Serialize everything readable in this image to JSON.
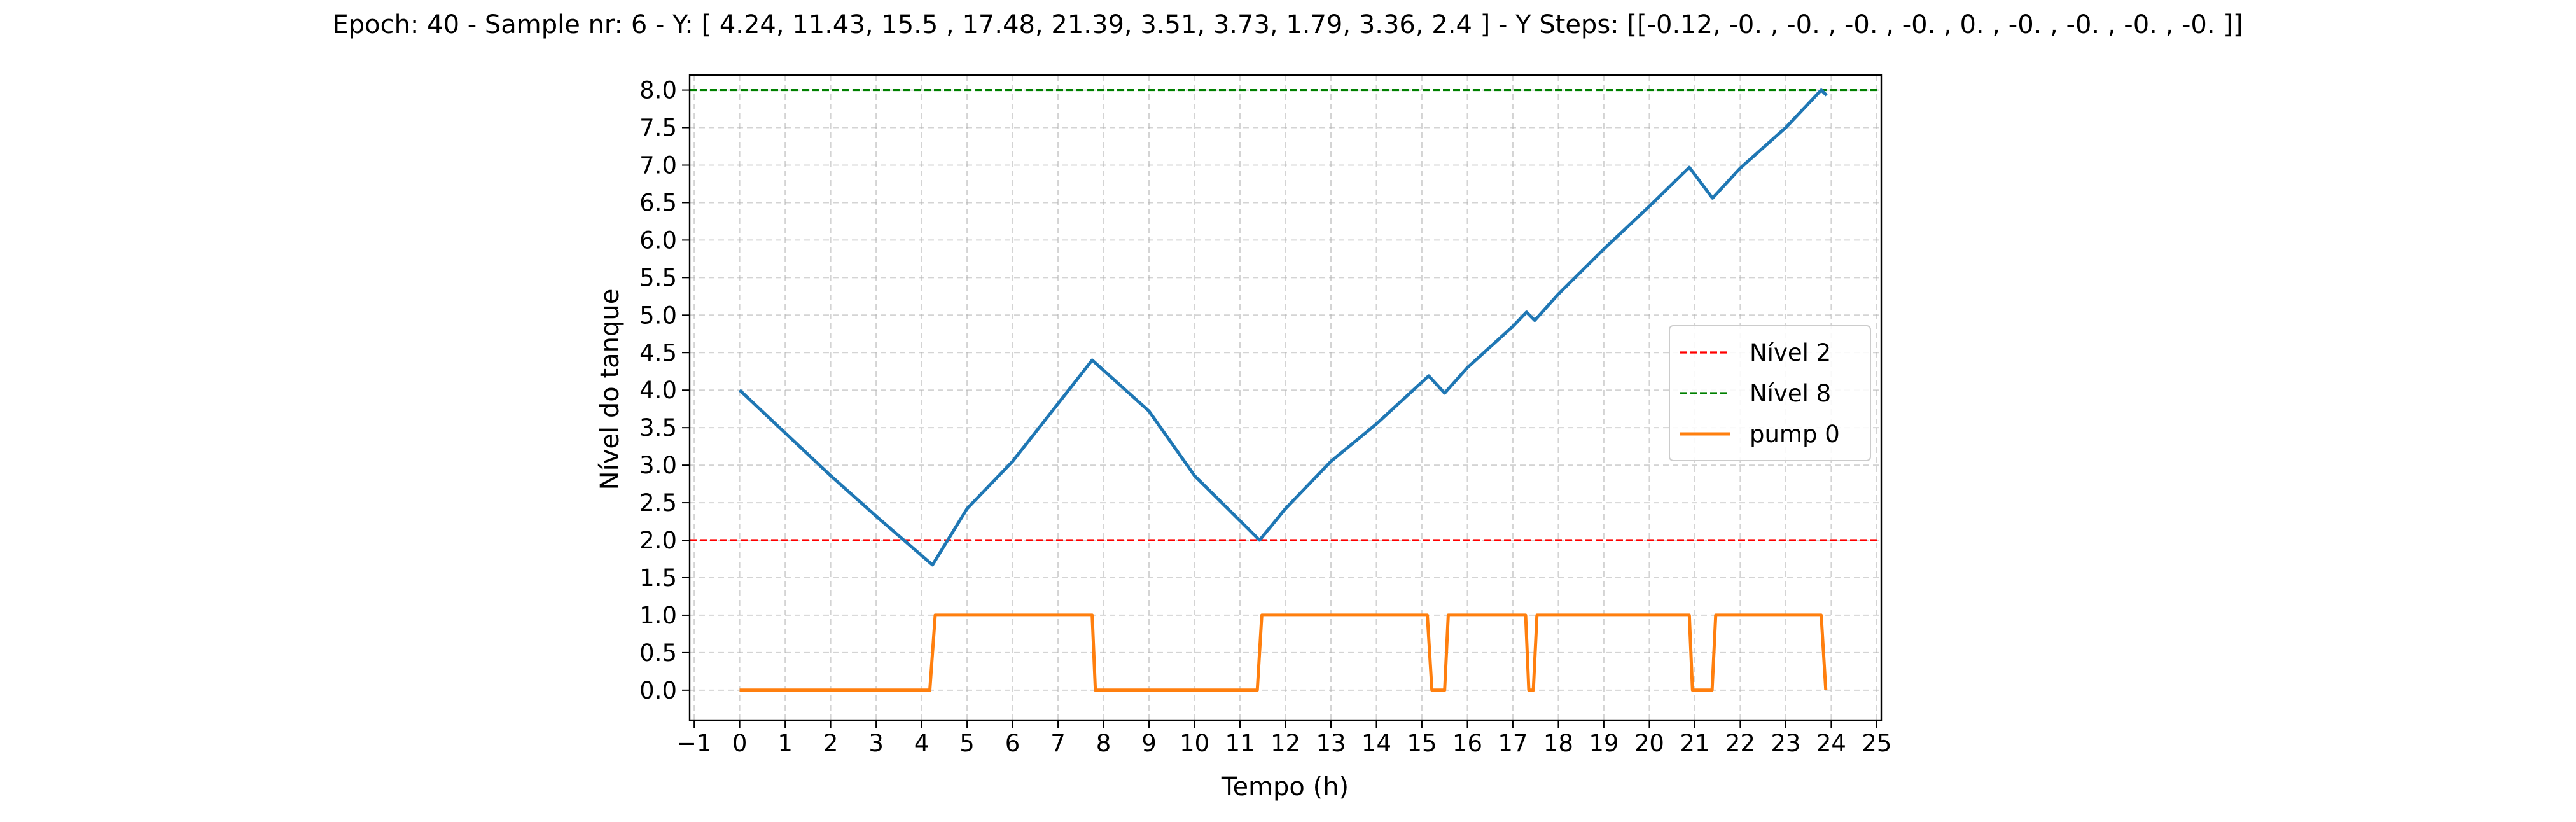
{
  "chart_data": {
    "type": "line",
    "title": "Epoch: 40 - Sample nr: 6 - Y: [ 4.24, 11.43, 15.5 , 17.48, 21.39,  3.51,  3.73,  1.79,  3.36,  2.4 ] - Y Steps: [[-0.12, -0.  , -0.  , -0.  , -0.  ,  0.  , -0.  , -0.  , -0.  , -0.  ]]",
    "xlabel": "Tempo (h)",
    "ylabel": "Nível do tanque",
    "xlim": [
      -1.1,
      25.1
    ],
    "ylim": [
      -0.4,
      8.2
    ],
    "x_ticks": [
      -1,
      0,
      1,
      2,
      3,
      4,
      5,
      6,
      7,
      8,
      9,
      10,
      11,
      12,
      13,
      14,
      15,
      16,
      17,
      18,
      19,
      20,
      21,
      22,
      23,
      24,
      25
    ],
    "y_ticks": [
      0.0,
      0.5,
      1.0,
      1.5,
      2.0,
      2.5,
      3.0,
      3.5,
      4.0,
      4.5,
      5.0,
      5.5,
      6.0,
      6.5,
      7.0,
      7.5,
      8.0
    ],
    "grid": true,
    "legend_position": "center-right",
    "hlines": [
      {
        "name": "Nível 2",
        "y": 2.0,
        "color": "#ff0000",
        "style": "dashed"
      },
      {
        "name": "Nível 8",
        "y": 8.0,
        "color": "#008000",
        "style": "dashed"
      }
    ],
    "series": [
      {
        "color": "#1f77b4",
        "points": [
          [
            0,
            4.0
          ],
          [
            1.0,
            3.43
          ],
          [
            2.0,
            2.86
          ],
          [
            3.0,
            2.32
          ],
          [
            4.24,
            1.67
          ],
          [
            5.0,
            2.42
          ],
          [
            6.0,
            3.05
          ],
          [
            7.0,
            3.82
          ],
          [
            7.75,
            4.4
          ],
          [
            9.0,
            3.72
          ],
          [
            10.0,
            2.86
          ],
          [
            11.43,
            2.0
          ],
          [
            12.0,
            2.42
          ],
          [
            13.0,
            3.05
          ],
          [
            14.0,
            3.55
          ],
          [
            15.15,
            4.19
          ],
          [
            15.5,
            3.96
          ],
          [
            16.0,
            4.3
          ],
          [
            17.0,
            4.85
          ],
          [
            17.3,
            5.04
          ],
          [
            17.48,
            4.93
          ],
          [
            18.0,
            5.28
          ],
          [
            19.0,
            5.88
          ],
          [
            20.0,
            6.45
          ],
          [
            20.88,
            6.97
          ],
          [
            21.39,
            6.56
          ],
          [
            22.0,
            6.96
          ],
          [
            23.0,
            7.5
          ],
          [
            23.78,
            8.0
          ],
          [
            23.9,
            7.93
          ]
        ]
      },
      {
        "name": "pump 0",
        "color": "#ff7f0e",
        "points": [
          [
            0,
            0
          ],
          [
            4.18,
            0
          ],
          [
            4.3,
            1
          ],
          [
            7.75,
            1
          ],
          [
            7.82,
            0
          ],
          [
            11.38,
            0
          ],
          [
            11.48,
            1
          ],
          [
            15.12,
            1
          ],
          [
            15.22,
            0
          ],
          [
            15.5,
            0
          ],
          [
            15.58,
            1
          ],
          [
            17.28,
            1
          ],
          [
            17.35,
            0
          ],
          [
            17.45,
            0
          ],
          [
            17.53,
            1
          ],
          [
            20.88,
            1
          ],
          [
            20.95,
            0
          ],
          [
            21.38,
            0
          ],
          [
            21.46,
            1
          ],
          [
            23.78,
            1
          ],
          [
            23.88,
            0
          ]
        ]
      }
    ]
  }
}
